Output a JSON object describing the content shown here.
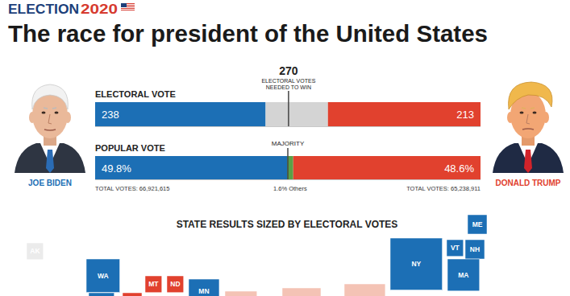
{
  "header": {
    "kicker": [
      "ELECTION",
      "2020"
    ],
    "title": "The race for president of the United States"
  },
  "candidates": [
    {
      "name": "JOE BIDEN",
      "color": "#1c6fb5"
    },
    {
      "name": "DONALD TRUMP",
      "color": "#e1412e"
    }
  ],
  "chart_data": [
    {
      "type": "bar",
      "orientation": "horizontal",
      "stacked": true,
      "title": "ELECTORAL VOTE",
      "xlim": [
        0,
        538
      ],
      "tick_labels": false,
      "data_labels": true,
      "series": [
        {
          "color": "#1c6fb5",
          "values": [
            238
          ]
        },
        {
          "color": "#d4d4d4",
          "values": [
            87
          ],
          "data_labels": false
        },
        {
          "color": "#e1412e",
          "values": [
            213
          ]
        }
      ],
      "annotations": [
        {
          "value": 270,
          "text": [
            "270",
            "ELECTORAL VOTES",
            "NEEDED TO WIN"
          ]
        }
      ]
    },
    {
      "type": "bar",
      "orientation": "horizontal",
      "stacked": true,
      "title": "POPULAR VOTE",
      "xlim": [
        0,
        100
      ],
      "tick_labels": false,
      "data_labels": true,
      "series": [
        {
          "color": "#1c6fb5",
          "values": [
            49.8
          ],
          "value_labels": [
            "49.8%"
          ],
          "total": "TOTAL VOTES: 66,921,615"
        },
        {
          "color": "#5aa146",
          "values": [
            1.6
          ],
          "value_labels": [
            "1.6% Others"
          ]
        },
        {
          "color": "#e1412e",
          "values": [
            48.6
          ],
          "value_labels": [
            "48.6%"
          ],
          "total": "TOTAL VOTES: 65,238,911"
        }
      ],
      "annotations": [
        {
          "value": 50,
          "text": [
            "MAJORITY"
          ]
        }
      ]
    }
  ],
  "state_map": {
    "title": "STATE RESULTS SIZED BY ELECTORAL VOTES",
    "tiles": [
      {
        "label": "AK",
        "electoral_votes": 3,
        "color": "#ebebeb"
      },
      {
        "label": "WA",
        "electoral_votes": 12,
        "color": "#1c6fb5"
      },
      {
        "label": "MT",
        "electoral_votes": 3,
        "color": "#e1412e"
      },
      {
        "label": "ND",
        "electoral_votes": 3,
        "color": "#e1412e"
      },
      {
        "label": "MN",
        "electoral_votes": 10,
        "color": "#1c6fb5"
      },
      {
        "label": null,
        "electoral_votes": 11,
        "color": "#f4c3b5"
      },
      {
        "label": null,
        "electoral_votes": 16,
        "color": "#f4c3b5"
      },
      {
        "label": null,
        "electoral_votes": 18,
        "color": "#f4c3b5"
      },
      {
        "label": "NY",
        "electoral_votes": 29,
        "color": "#1c6fb5"
      },
      {
        "label": "VT",
        "electoral_votes": 3,
        "color": "#1c6fb5"
      },
      {
        "label": "NH",
        "electoral_votes": 4,
        "color": "#1c6fb5"
      },
      {
        "label": "ME",
        "electoral_votes": 4,
        "color": "#1c6fb5"
      },
      {
        "label": "MA",
        "electoral_votes": 11,
        "color": "#1c6fb5"
      },
      {
        "label": null,
        "electoral_votes": 7,
        "color": "#1c6fb5"
      },
      {
        "label": null,
        "electoral_votes": 4,
        "color": "#e1412e"
      }
    ]
  }
}
